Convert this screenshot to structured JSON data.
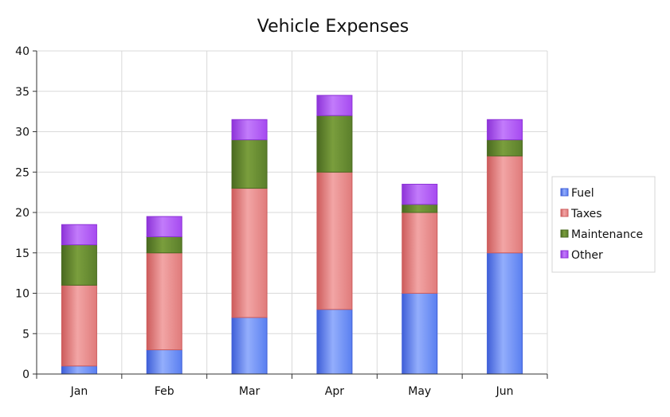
{
  "chart_data": {
    "type": "bar",
    "stacked": true,
    "title": "Vehicle Expenses",
    "xlabel": "",
    "ylabel": "",
    "categories": [
      "Jan",
      "Feb",
      "Mar",
      "Apr",
      "May",
      "Jun"
    ],
    "series": [
      {
        "name": "Fuel",
        "values": [
          1,
          3,
          7,
          8,
          10,
          15
        ],
        "color": "#5a7ff0",
        "color_light": "#93aefc",
        "color_dark": "#3f5fd8"
      },
      {
        "name": "Taxes",
        "values": [
          10,
          12,
          16,
          17,
          10,
          12
        ],
        "color": "#e07b7b",
        "color_light": "#f2a5a5",
        "color_dark": "#cd5c5c"
      },
      {
        "name": "Maintenance",
        "values": [
          5,
          2,
          6,
          7,
          1,
          2
        ],
        "color": "#5b7f2b",
        "color_light": "#7a9e3d",
        "color_dark": "#4a6a20"
      },
      {
        "name": "Other",
        "values": [
          2.5,
          2.5,
          2.5,
          2.5,
          2.5,
          2.5
        ],
        "color": "#a64af0",
        "color_light": "#c27bfb",
        "color_dark": "#8d33d8"
      }
    ],
    "ylim": [
      0,
      40
    ],
    "yticks": [
      "0",
      "5",
      "10",
      "15",
      "20",
      "25",
      "30",
      "35",
      "40"
    ],
    "grid": true,
    "legend_position": "right"
  }
}
